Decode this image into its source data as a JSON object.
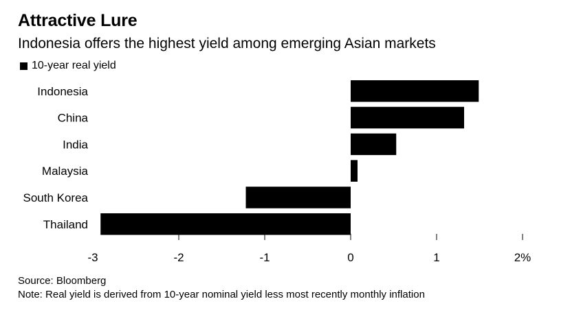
{
  "chart_data": {
    "type": "bar",
    "orientation": "horizontal",
    "title": "Attractive Lure",
    "subtitle": "Indonesia offers the highest yield among emerging Asian markets",
    "legend": [
      "10-year real yield"
    ],
    "categories": [
      "Indonesia",
      "China",
      "India",
      "Malaysia",
      "South Korea",
      "Thailand"
    ],
    "values": [
      1.49,
      1.32,
      0.53,
      0.08,
      -1.22,
      -2.91
    ],
    "xlim": [
      -3,
      2
    ],
    "xticks": [
      -3,
      -2,
      -1,
      0,
      1,
      2
    ],
    "xtick_labels": [
      "-3",
      "-2",
      "-1",
      "0",
      "1",
      "2%"
    ],
    "xlabel": "",
    "ylabel": "",
    "bar_color": "#000000",
    "grid": false
  },
  "footer": {
    "source": "Source: Bloomberg",
    "note": "Note: Real yield is derived from 10-year nominal yield less most recently monthly inflation"
  }
}
